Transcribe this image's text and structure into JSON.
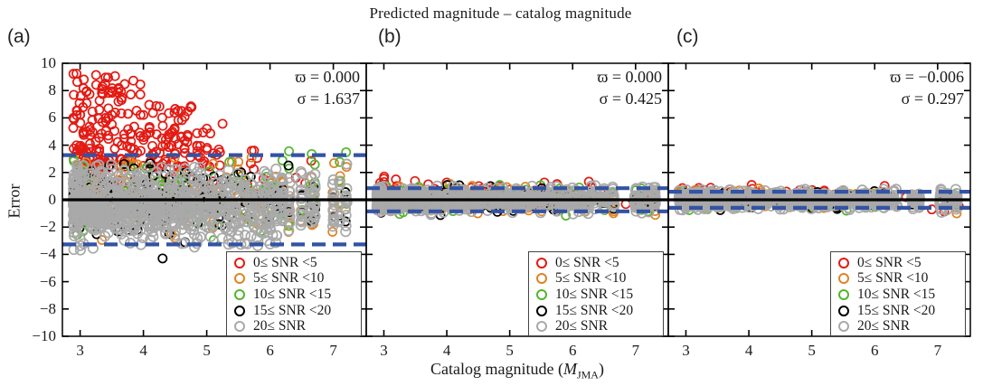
{
  "chart_data": {
    "type": "scatter",
    "title": "Predicted magnitude – catalog magnitude",
    "ylabel": "Error",
    "xlabel_prefix": "Catalog magnitude (",
    "xlabel_var": "M",
    "xlabel_sub": "JMA",
    "xlabel_close": ")",
    "x_range": [
      2.72,
      7.52
    ],
    "y_range": [
      -10,
      10
    ],
    "xticks": {
      "values": [
        3,
        4,
        5,
        6,
        7
      ],
      "labels": [
        "3",
        "4",
        "5",
        "6",
        "7"
      ]
    },
    "yticks": {
      "values": [
        10,
        8,
        6,
        4,
        2,
        0,
        -2,
        -4,
        -6,
        -8,
        -10
      ],
      "labels": [
        "10",
        "8",
        "6",
        "4",
        "2",
        "0",
        "−2",
        "−4",
        "−6",
        "−8",
        "−10"
      ]
    },
    "grid": false,
    "zero_line_color": "#000000",
    "dashed_line_color": "#3353a4",
    "legend": {
      "position": "lower right",
      "items": [
        {
          "label": "0≤ SNR <5",
          "color": "#e31a13"
        },
        {
          "label": "5≤ SNR <10",
          "color": "#df8324"
        },
        {
          "label": "10≤ SNR <15",
          "color": "#52b52c"
        },
        {
          "label": "15≤ SNR <20",
          "color": "#000000"
        },
        {
          "label": "20≤ SNR",
          "color": "#a9a9a9"
        }
      ]
    },
    "panels": [
      {
        "label": "(a)",
        "stats_lines": [
          "ϖ = 0.000",
          "σ = 1.637"
        ],
        "dashed_y": 3.27,
        "series": [
          {
            "name": "0≤ SNR <5",
            "color": "#e31a13",
            "r": 4.6,
            "clusters": [
              {
                "n": 150,
                "xr": [
                  2.9,
                  3.95
                ],
                "xbias": 1.2,
                "yr": [
                  2.4,
                  9.3
                ],
                "ybias": 1.5
              },
              {
                "n": 75,
                "xr": [
                  3.95,
                  4.75
                ],
                "xbias": 1.0,
                "yr": [
                  2.4,
                  7.0
                ],
                "ybias": 1.4
              },
              {
                "n": 22,
                "xr": [
                  4.75,
                  5.25
                ],
                "xbias": 1.0,
                "yr": [
                  2.4,
                  5.3
                ],
                "ybias": 1.3
              },
              {
                "n": 1,
                "xr": [
                  5.22,
                  5.28
                ],
                "yr": [
                  5.5,
                  5.65
                ]
              },
              {
                "n": 2,
                "xr": [
                  5.55,
                  6.0
                ],
                "yr": [
                  3.3,
                  3.7
                ]
              },
              {
                "n": 55,
                "xr": [
                  2.9,
                  6.7
                ],
                "xbias": 1.6,
                "ynorm": [
                  1.2,
                  0.95,
                  -1.8,
                  3.1
                ]
              }
            ]
          },
          {
            "name": "5≤ SNR <10",
            "color": "#df8324",
            "r": 4.6,
            "clusters": [
              {
                "n": 140,
                "xr": [
                  2.9,
                  6.15
                ],
                "xbias": 1.7,
                "ynorm": [
                  0.25,
                  1.5,
                  -3.3,
                  3.5
                ]
              },
              {
                "n": 28,
                "cols": [
                  6.2,
                  6.3,
                  6.5,
                  6.65,
                  6.7,
                  7.0,
                  7.1,
                  7.2
                ],
                "ynorm": [
                  0,
                  1.5,
                  -2.6,
                  3.0
                ]
              }
            ]
          },
          {
            "name": "10≤ SNR <15",
            "color": "#52b52c",
            "r": 4.6,
            "clusters": [
              {
                "n": 130,
                "xr": [
                  2.9,
                  6.15
                ],
                "xbias": 1.7,
                "ynorm": [
                  0.15,
                  1.35,
                  -3.0,
                  3.3
                ]
              },
              {
                "n": 22,
                "cols": [
                  6.2,
                  6.3,
                  6.5,
                  6.65,
                  6.7,
                  7.0,
                  7.1,
                  7.2
                ],
                "ynorm": [
                  0.2,
                  1.5,
                  -2.2,
                  3.6
                ]
              }
            ]
          },
          {
            "name": "15≤ SNR <20",
            "color": "#000000",
            "r": 4.6,
            "clusters": [
              {
                "n": 150,
                "xr": [
                  2.9,
                  6.15
                ],
                "xbias": 1.6,
                "ynorm": [
                  0,
                  1.4,
                  -3.5,
                  3.1
                ]
              },
              {
                "n": 20,
                "cols": [
                  6.2,
                  6.3,
                  6.5,
                  6.65,
                  6.7,
                  7.0,
                  7.1,
                  7.2
                ],
                "ynorm": [
                  0,
                  1.3,
                  -2.5,
                  2.6
                ]
              },
              {
                "n": 1,
                "xr": [
                  4.3,
                  4.38
                ],
                "yr": [
                  -4.4,
                  -4.3
                ]
              }
            ]
          },
          {
            "name": "20≤ SNR",
            "color": "#a9a9a9",
            "r": 5.2,
            "clusters": [
              {
                "n": 850,
                "xr": [
                  2.9,
                  6.15
                ],
                "xbias": 1.5,
                "ynorm": [
                  -0.4,
                  1.35,
                  -3.7,
                  2.6
                ]
              },
              {
                "n": 110,
                "cols": [
                  6.2,
                  6.3,
                  6.5,
                  6.65,
                  6.7,
                  7.0,
                  7.1,
                  7.2
                ],
                "ynorm": [
                  -0.1,
                  1.35,
                  -2.9,
                  2.7
                ]
              }
            ]
          }
        ]
      },
      {
        "label": "(b)",
        "stats_lines": [
          "ϖ = 0.000",
          "σ = 0.425"
        ],
        "dashed_y": 0.85,
        "series": [
          {
            "name": "0≤ SNR <5",
            "color": "#e31a13",
            "r": 4.6,
            "clusters": [
              {
                "n": 20,
                "xr": [
                  2.9,
                  3.25
                ],
                "ynorm": [
                  0.9,
                  0.5,
                  -0.2,
                  1.95
                ]
              },
              {
                "n": 65,
                "xr": [
                  3.0,
                  6.5
                ],
                "xbias": 1.4,
                "ynorm": [
                  0.5,
                  0.33,
                  -0.6,
                  1.4
                ]
              },
              {
                "n": 6,
                "cols": [
                  6.85,
                  7.05,
                  7.2,
                  7.3
                ],
                "ynorm": [
                  -0.6,
                  0.4,
                  -1.4,
                  0.3
                ]
              }
            ]
          },
          {
            "name": "5≤ SNR <10",
            "color": "#df8324",
            "r": 4.6,
            "clusters": [
              {
                "n": 100,
                "xr": [
                  2.9,
                  6.35
                ],
                "xbias": 1.6,
                "ynorm": [
                  0,
                  0.52,
                  -1.35,
                  1.25
                ]
              },
              {
                "n": 18,
                "cols": [
                  6.5,
                  6.65,
                  7.0,
                  7.1,
                  7.2,
                  7.3
                ],
                "ynorm": [
                  -0.2,
                  0.6,
                  -1.5,
                  1.0
                ]
              }
            ]
          },
          {
            "name": "10≤ SNR <15",
            "color": "#52b52c",
            "r": 4.6,
            "clusters": [
              {
                "n": 100,
                "xr": [
                  2.9,
                  6.35
                ],
                "xbias": 1.6,
                "ynorm": [
                  0,
                  0.5,
                  -1.2,
                  1.2
                ]
              },
              {
                "n": 15,
                "cols": [
                  6.5,
                  6.65,
                  7.0,
                  7.1,
                  7.2,
                  7.3
                ],
                "ynorm": [
                  0,
                  0.5,
                  -1.0,
                  1.0
                ]
              }
            ]
          },
          {
            "name": "15≤ SNR <20",
            "color": "#000000",
            "r": 4.6,
            "clusters": [
              {
                "n": 110,
                "xr": [
                  2.9,
                  6.35
                ],
                "xbias": 1.6,
                "ynorm": [
                  0,
                  0.45,
                  -1.15,
                  1.1
                ]
              },
              {
                "n": 15,
                "cols": [
                  6.5,
                  6.65,
                  7.0,
                  7.1,
                  7.2,
                  7.3
                ],
                "ynorm": [
                  0,
                  0.5,
                  -1.0,
                  0.9
                ]
              }
            ]
          },
          {
            "name": "20≤ SNR",
            "color": "#a9a9a9",
            "r": 5.2,
            "clusters": [
              {
                "n": 700,
                "xr": [
                  2.9,
                  6.35
                ],
                "xbias": 1.5,
                "ynorm": [
                  0,
                  0.42,
                  -1.1,
                  1.05
                ]
              },
              {
                "n": 100,
                "cols": [
                  6.5,
                  6.65,
                  7.0,
                  7.1,
                  7.2,
                  7.3
                ],
                "ynorm": [
                  0,
                  0.5,
                  -1.2,
                  1.0
                ]
              }
            ]
          }
        ]
      },
      {
        "label": "(c)",
        "stats_lines": [
          "ϖ = −0.006",
          "σ = 0.297"
        ],
        "dashed_y": 0.59,
        "series": [
          {
            "name": "0≤ SNR <5",
            "color": "#e31a13",
            "r": 4.6,
            "clusters": [
              {
                "n": 14,
                "xr": [
                  2.9,
                  3.3
                ],
                "ynorm": [
                  0.5,
                  0.3,
                  -0.3,
                  1.0
                ]
              },
              {
                "n": 60,
                "xr": [
                  3.0,
                  6.6
                ],
                "xbias": 1.3,
                "ynorm": [
                  0.35,
                  0.28,
                  -0.5,
                  1.25
                ]
              },
              {
                "n": 5,
                "cols": [
                  6.9,
                  7.1,
                  7.25,
                  7.35
                ],
                "ynorm": [
                  -0.5,
                  0.25,
                  -1.0,
                  0.1
                ]
              }
            ]
          },
          {
            "name": "5≤ SNR <10",
            "color": "#df8324",
            "r": 4.6,
            "clusters": [
              {
                "n": 95,
                "xr": [
                  2.9,
                  6.35
                ],
                "xbias": 1.6,
                "ynorm": [
                  0,
                  0.36,
                  -1.0,
                  0.9
                ]
              },
              {
                "n": 15,
                "cols": [
                  6.6,
                  6.7,
                  7.05,
                  7.15,
                  7.3
                ],
                "ynorm": [
                  -0.1,
                  0.4,
                  -1.1,
                  0.7
                ]
              }
            ]
          },
          {
            "name": "10≤ SNR <15",
            "color": "#52b52c",
            "r": 4.6,
            "clusters": [
              {
                "n": 95,
                "xr": [
                  2.9,
                  6.35
                ],
                "xbias": 1.6,
                "ynorm": [
                  0,
                  0.33,
                  -0.9,
                  0.85
                ]
              },
              {
                "n": 12,
                "cols": [
                  6.6,
                  6.7,
                  7.05,
                  7.15,
                  7.3
                ],
                "ynorm": [
                  0,
                  0.35,
                  -0.8,
                  0.7
                ]
              }
            ]
          },
          {
            "name": "15≤ SNR <20",
            "color": "#000000",
            "r": 4.6,
            "clusters": [
              {
                "n": 105,
                "xr": [
                  2.9,
                  6.35
                ],
                "xbias": 1.6,
                "ynorm": [
                  0,
                  0.3,
                  -0.85,
                  0.8
                ]
              },
              {
                "n": 12,
                "cols": [
                  6.6,
                  6.7,
                  7.05,
                  7.15,
                  7.3
                ],
                "ynorm": [
                  0,
                  0.35,
                  -0.75,
                  0.7
                ]
              }
            ]
          },
          {
            "name": "20≤ SNR",
            "color": "#a9a9a9",
            "r": 5.2,
            "clusters": [
              {
                "n": 680,
                "xr": [
                  2.9,
                  6.35
                ],
                "xbias": 1.5,
                "ynorm": [
                  0,
                  0.3,
                  -0.85,
                  0.78
                ]
              },
              {
                "n": 95,
                "cols": [
                  6.6,
                  6.7,
                  7.05,
                  7.15,
                  7.3
                ],
                "ynorm": [
                  0,
                  0.38,
                  -1.0,
                  0.8
                ]
              }
            ]
          }
        ]
      }
    ]
  }
}
